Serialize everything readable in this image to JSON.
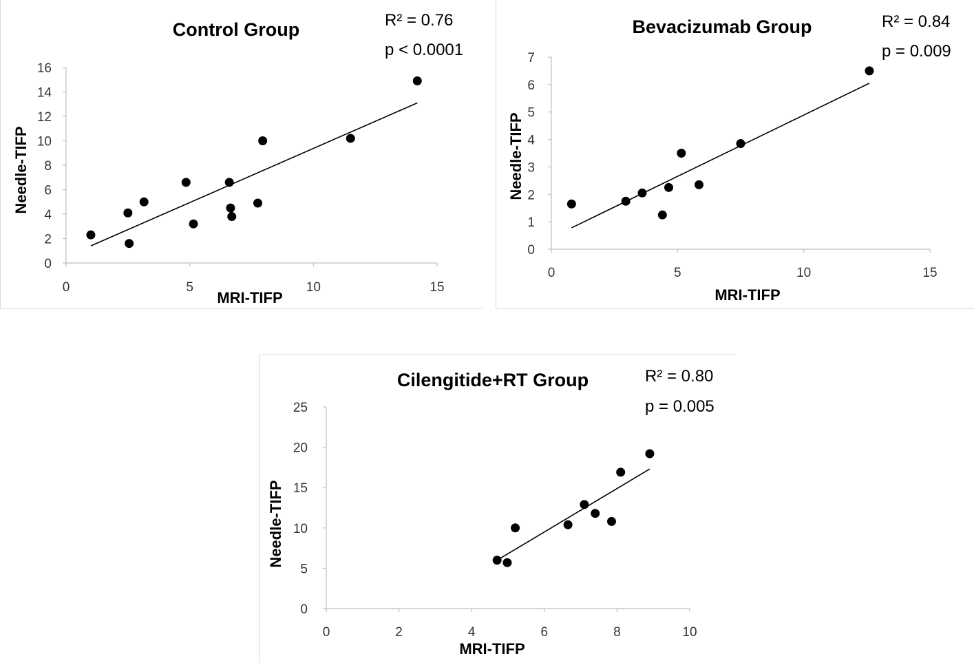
{
  "chart_data": [
    {
      "type": "scatter",
      "title": "Control Group",
      "stats": [
        "R² = 0.76",
        "p < 0.0001"
      ],
      "xlabel": "MRI-TIFP",
      "ylabel": "Needle-TIFP",
      "xlim": [
        0,
        15
      ],
      "ylim": [
        0,
        16
      ],
      "xticks": [
        0,
        5,
        10,
        15
      ],
      "yticks": [
        0,
        2,
        4,
        6,
        8,
        10,
        12,
        14,
        16
      ],
      "x": [
        1.0,
        2.5,
        2.55,
        3.15,
        4.85,
        5.15,
        6.6,
        6.65,
        6.7,
        7.75,
        7.95,
        11.5,
        14.2
      ],
      "y": [
        2.3,
        4.1,
        1.6,
        5.0,
        6.6,
        3.2,
        6.6,
        4.5,
        3.8,
        4.9,
        10.0,
        10.2,
        14.9
      ],
      "trendline": {
        "x": [
          1.0,
          14.2
        ],
        "y": [
          1.4,
          13.1
        ]
      }
    },
    {
      "type": "scatter",
      "title": "Bevacizumab Group",
      "stats": [
        "R² = 0.84",
        "p = 0.009"
      ],
      "xlabel": "MRI-TIFP",
      "ylabel": "Needle-TIFP",
      "xlim": [
        0,
        15
      ],
      "ylim": [
        0,
        7
      ],
      "xticks": [
        0,
        5,
        10,
        15
      ],
      "yticks": [
        0,
        1,
        2,
        3,
        4,
        5,
        6,
        7
      ],
      "x": [
        0.8,
        2.95,
        3.6,
        4.4,
        4.65,
        5.15,
        5.85,
        7.5,
        12.6
      ],
      "y": [
        1.65,
        1.75,
        2.05,
        1.25,
        2.25,
        3.5,
        2.35,
        3.85,
        6.5
      ],
      "trendline": {
        "x": [
          0.8,
          12.6
        ],
        "y": [
          0.78,
          6.05
        ]
      }
    },
    {
      "type": "scatter",
      "title": "Cilengitide+RT Group",
      "stats": [
        "R² = 0.80",
        "p = 0.005"
      ],
      "xlabel": "MRI-TIFP",
      "ylabel": "Needle-TIFP",
      "xlim": [
        0,
        10
      ],
      "ylim": [
        0,
        25
      ],
      "xticks": [
        0,
        2,
        4,
        6,
        8,
        10
      ],
      "yticks": [
        0,
        5,
        10,
        15,
        20,
        25
      ],
      "x": [
        4.7,
        4.98,
        5.2,
        6.65,
        7.1,
        7.4,
        7.85,
        8.1,
        8.9
      ],
      "y": [
        6.0,
        5.7,
        10.0,
        10.4,
        12.9,
        11.8,
        10.8,
        16.9,
        19.2
      ],
      "trendline": {
        "x": [
          4.7,
          8.9
        ],
        "y": [
          6.0,
          17.3
        ]
      }
    }
  ]
}
